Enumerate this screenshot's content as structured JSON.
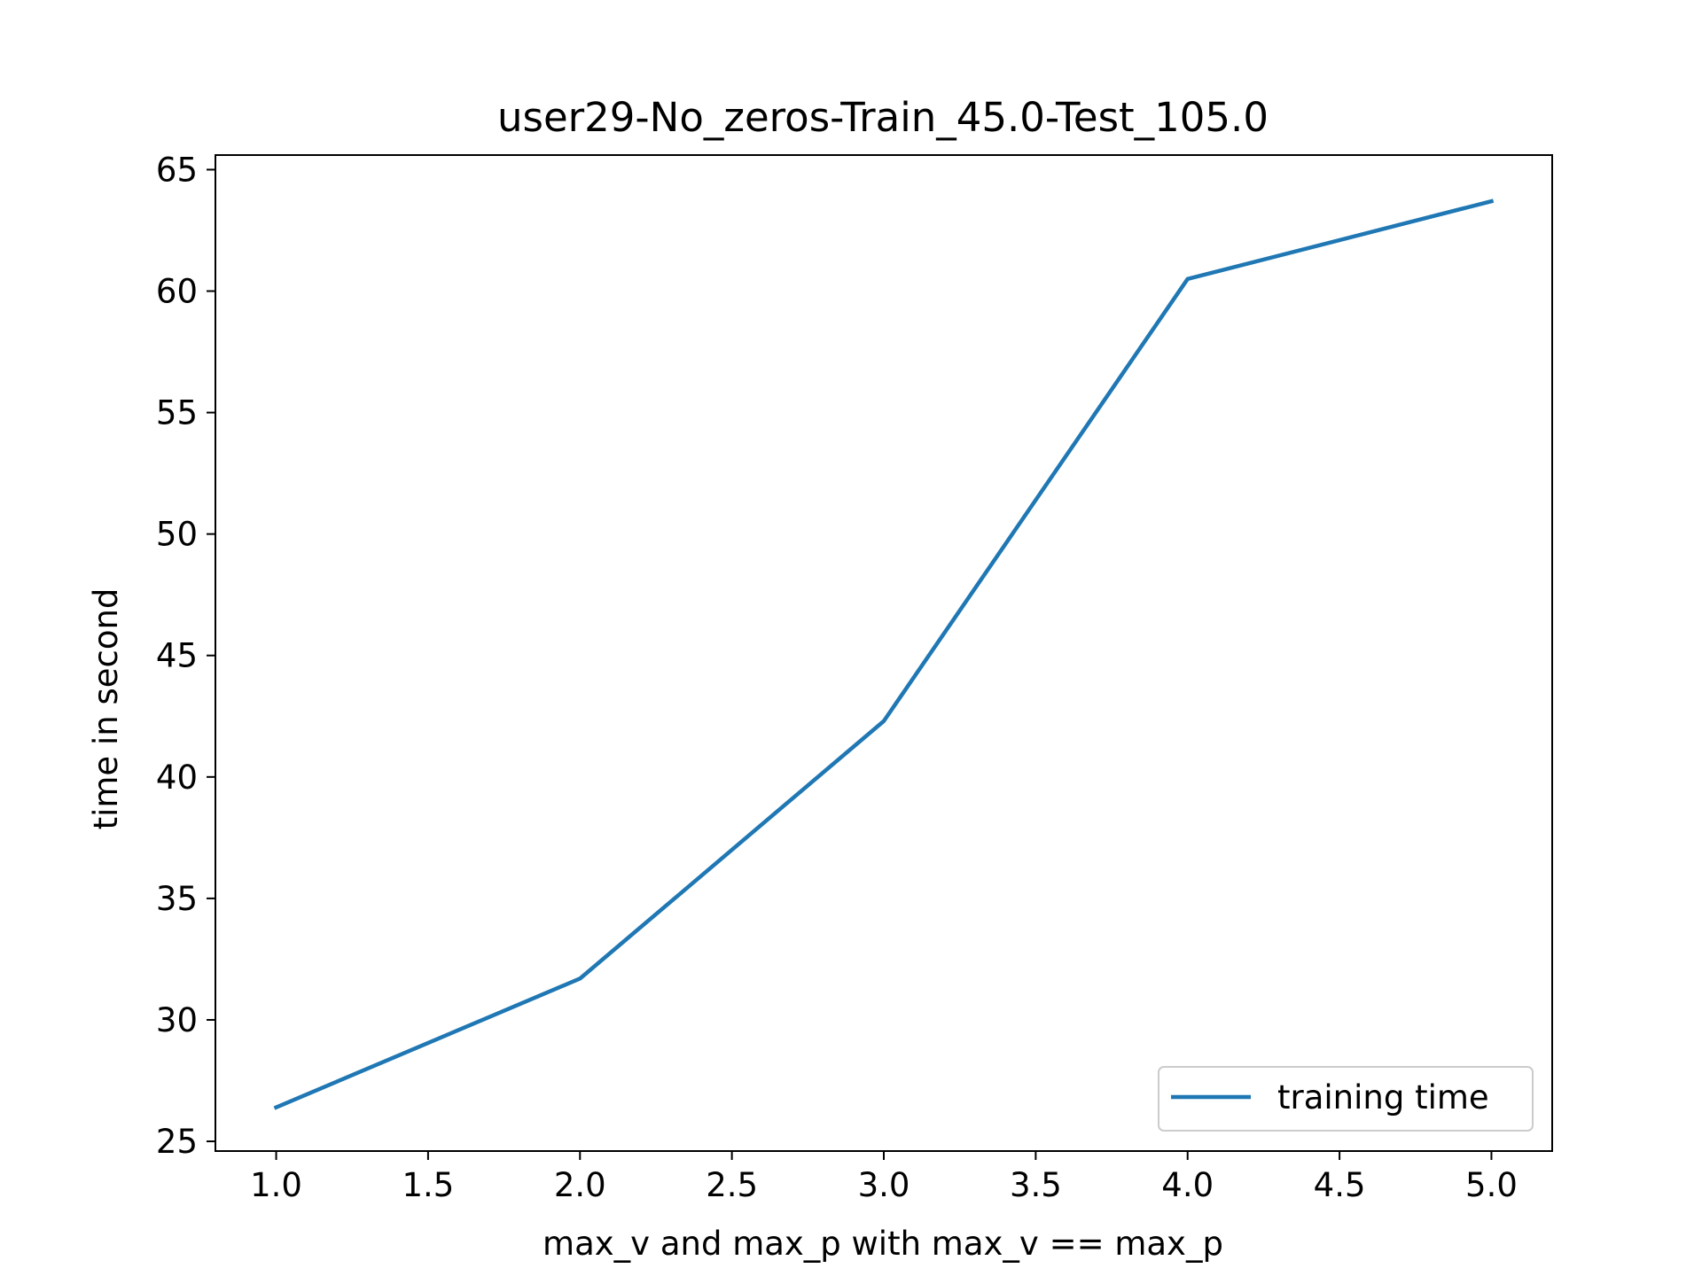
{
  "chart_data": {
    "type": "line",
    "title": "user29-No_zeros-Train_45.0-Test_105.0",
    "xlabel": "max_v and max_p with max_v == max_p",
    "ylabel": "time in second",
    "x": [
      1.0,
      2.0,
      3.0,
      4.0,
      5.0
    ],
    "series": [
      {
        "name": "training time",
        "values": [
          26.4,
          31.7,
          42.3,
          60.5,
          63.7
        ],
        "color": "#1f77b4"
      }
    ],
    "xlim": [
      0.8,
      5.2
    ],
    "ylim": [
      24.6,
      65.6
    ],
    "xticks": [
      1.0,
      1.5,
      2.0,
      2.5,
      3.0,
      3.5,
      4.0,
      4.5,
      5.0
    ],
    "xtick_labels": [
      "1.0",
      "1.5",
      "2.0",
      "2.5",
      "3.0",
      "3.5",
      "4.0",
      "4.5",
      "5.0"
    ],
    "yticks": [
      25,
      30,
      35,
      40,
      45,
      50,
      55,
      60,
      65
    ],
    "ytick_labels": [
      "25",
      "30",
      "35",
      "40",
      "45",
      "50",
      "55",
      "60",
      "65"
    ],
    "grid": false,
    "legend_position": "lower right"
  }
}
